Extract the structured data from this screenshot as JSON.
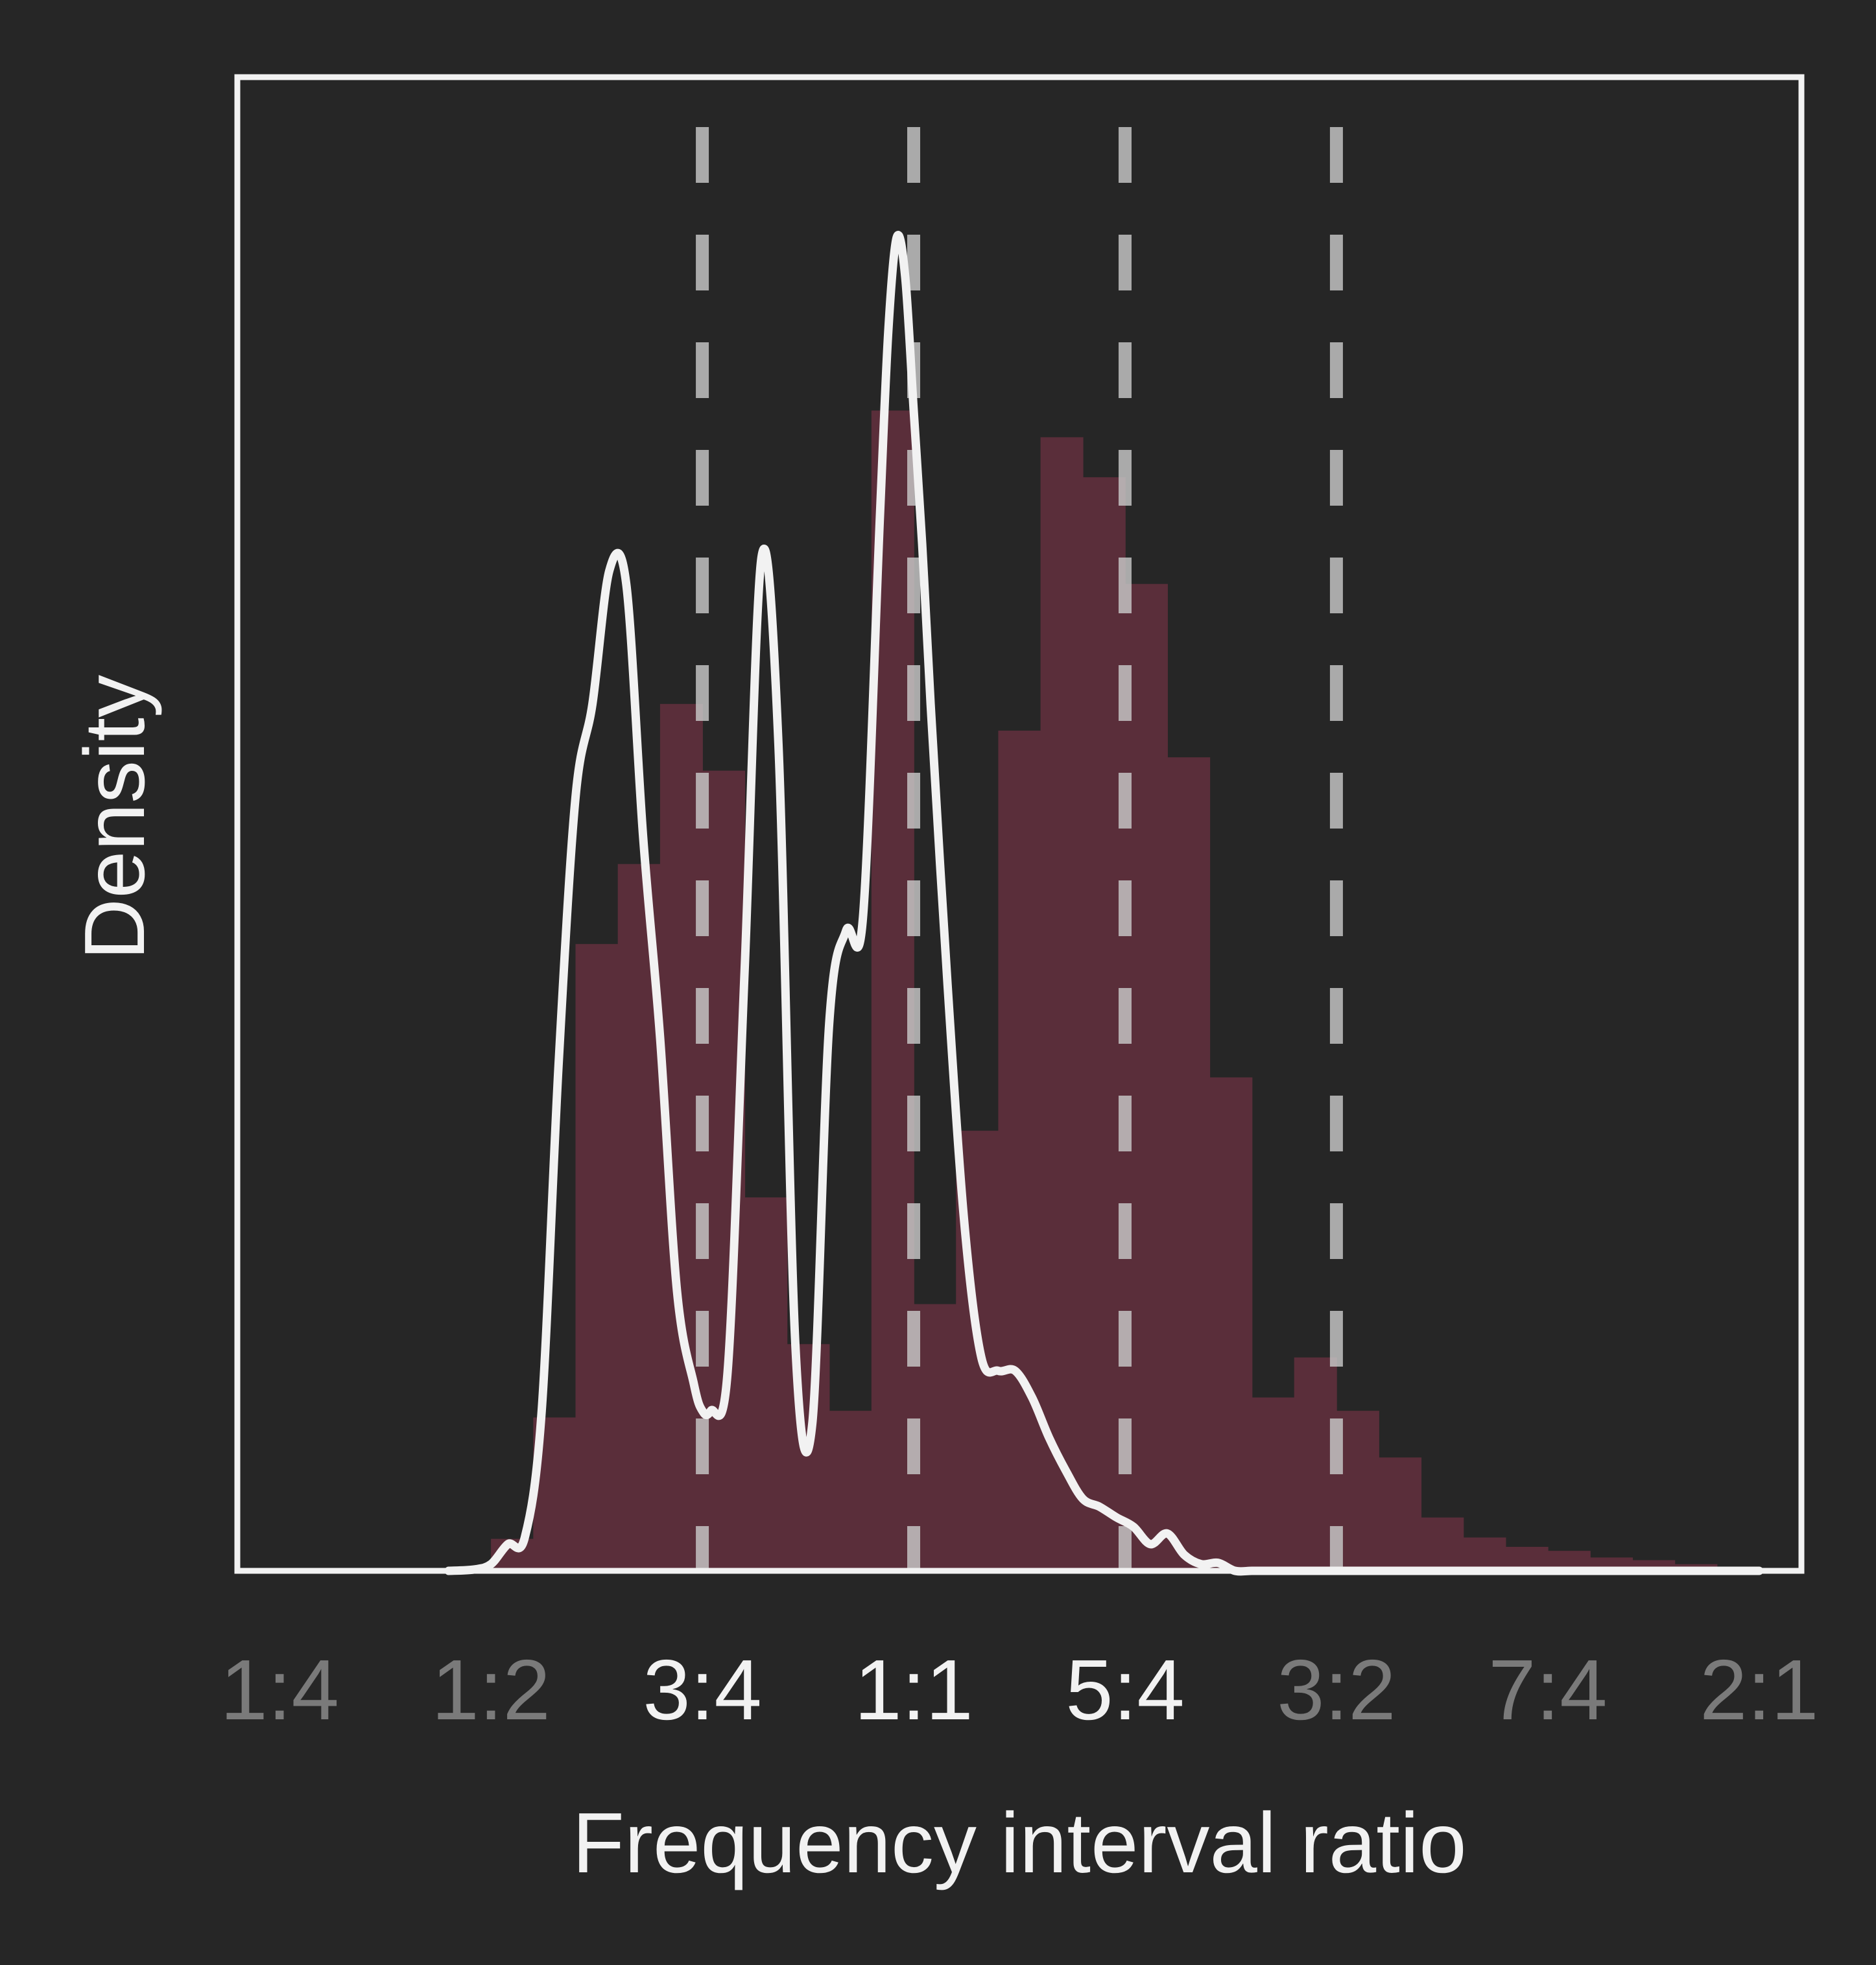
{
  "chart_data": {
    "type": "bar",
    "xlabel": "Frequency interval ratio",
    "ylabel": "Density",
    "xlim": [
      0.2,
      2.05
    ],
    "ylim": [
      0,
      1.12
    ],
    "ticks": [
      {
        "value": 0.25,
        "label": "1:4",
        "highlighted": false
      },
      {
        "value": 0.5,
        "label": "1:2",
        "highlighted": false
      },
      {
        "value": 0.75,
        "label": "3:4",
        "highlighted": true
      },
      {
        "value": 1.0,
        "label": "1:1",
        "highlighted": true
      },
      {
        "value": 1.25,
        "label": "5:4",
        "highlighted": true
      },
      {
        "value": 1.5,
        "label": "3:2",
        "highlighted": false
      },
      {
        "value": 1.75,
        "label": "7:4",
        "highlighted": false
      },
      {
        "value": 2.0,
        "label": "2:1",
        "highlighted": false
      }
    ],
    "reference_lines": [
      0.75,
      1.0,
      1.25,
      1.5
    ],
    "histogram": {
      "bin_width": 0.05,
      "bin_starts": [
        0.5,
        0.55,
        0.6,
        0.65,
        0.7,
        0.75,
        0.8,
        0.85,
        0.9,
        0.95,
        1.0,
        1.05,
        1.1,
        1.15,
        1.2,
        1.25,
        1.3,
        1.35,
        1.4,
        1.45,
        1.5,
        1.55,
        1.6,
        1.65,
        1.7,
        1.75,
        1.8,
        1.85,
        1.9,
        1.95
      ],
      "values": [
        0.024,
        0.115,
        0.47,
        0.53,
        0.65,
        0.6,
        0.28,
        0.17,
        0.12,
        0.87,
        0.2,
        0.33,
        0.63,
        0.85,
        0.82,
        0.74,
        0.61,
        0.37,
        0.13,
        0.16,
        0.12,
        0.085,
        0.04,
        0.025,
        0.018,
        0.015,
        0.01,
        0.008,
        0.005,
        0.003
      ]
    },
    "density": {
      "x": [
        0.45,
        0.48,
        0.5,
        0.52,
        0.54,
        0.56,
        0.58,
        0.6,
        0.62,
        0.64,
        0.66,
        0.68,
        0.7,
        0.72,
        0.74,
        0.75,
        0.76,
        0.78,
        0.8,
        0.82,
        0.84,
        0.86,
        0.88,
        0.9,
        0.92,
        0.94,
        0.96,
        0.97,
        0.98,
        0.99,
        1.0,
        1.01,
        1.02,
        1.04,
        1.06,
        1.08,
        1.1,
        1.12,
        1.14,
        1.16,
        1.18,
        1.2,
        1.22,
        1.24,
        1.26,
        1.28,
        1.3,
        1.32,
        1.34,
        1.36,
        1.38,
        1.4,
        1.42,
        1.44,
        1.46,
        1.48,
        1.5,
        1.52,
        1.54,
        1.56,
        1.58,
        1.6,
        1.62,
        1.64,
        1.66,
        1.68,
        1.7,
        1.72,
        1.74,
        1.76,
        1.78,
        1.8,
        1.82,
        1.84,
        1.86,
        1.88,
        1.9,
        1.92,
        1.94,
        1.96,
        1.98,
        2.0
      ],
      "y": [
        0.0,
        0.001,
        0.005,
        0.02,
        0.025,
        0.12,
        0.38,
        0.58,
        0.65,
        0.75,
        0.74,
        0.55,
        0.4,
        0.21,
        0.14,
        0.12,
        0.12,
        0.15,
        0.45,
        0.76,
        0.62,
        0.17,
        0.11,
        0.41,
        0.48,
        0.49,
        0.79,
        0.93,
        1.0,
        0.97,
        0.87,
        0.77,
        0.65,
        0.44,
        0.26,
        0.16,
        0.15,
        0.15,
        0.13,
        0.1,
        0.075,
        0.054,
        0.048,
        0.04,
        0.033,
        0.02,
        0.028,
        0.012,
        0.005,
        0.006,
        0.0,
        0.0,
        0.0,
        0.0,
        0.0,
        0.0,
        0.0,
        0.0,
        0.0,
        0.0,
        0.0,
        0.0,
        0.0,
        0.0,
        0.0,
        0.0,
        0.0,
        0.0,
        0.0,
        0.0,
        0.0,
        0.0,
        0.0,
        0.0,
        0.0,
        0.0,
        0.0,
        0.0,
        0.0,
        0.0,
        0.0,
        0.0
      ]
    },
    "colors": {
      "background": "#262626",
      "bar": "#5a2e3a",
      "curve": "#f2f2f2",
      "frame": "#f2f2f2",
      "reference_line": "#c8c8c8",
      "tick_highlight": "#f2f2f2",
      "tick_muted": "#7a7a7a"
    }
  }
}
